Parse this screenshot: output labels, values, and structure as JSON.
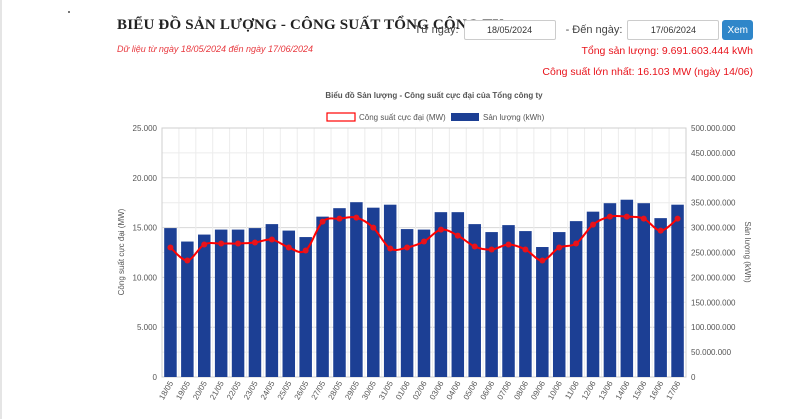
{
  "page": {
    "title": "BIỂU ĐỒ SẢN LƯỢNG - CÔNG SUẤT TỔNG CÔNG TY",
    "subtitle": "Dữ liệu từ ngày 18/05/2024 đến ngày 17/06/2024",
    "from_label": "Từ ngày:",
    "from_value": "18/05/2024",
    "to_label": "- Đến ngày:",
    "to_value": "17/06/2024",
    "view_button": "Xem",
    "total_output": "Tổng sản lượng: 9.691.603.444 kWh",
    "max_power": "Công suất lớn nhất: 16.103 MW (ngày 14/06)"
  },
  "colors": {
    "bar": "#1c3f94",
    "line": "#ff0000",
    "marker": "#e8131b",
    "accent": "#e8393f",
    "button": "#2f86c9"
  },
  "chart_data": {
    "type": "bar+line",
    "title": "Biểu đồ Sản lượng - Công suất cực đại của Tổng công ty",
    "legend": [
      "Công suất cực đại (MW)",
      "Sản lượng (kWh)"
    ],
    "ylabel_left": "Công suất cực đại (MW)",
    "ylabel_right": "Sản lượng (kWh)",
    "ylim_left": [
      0,
      25000
    ],
    "ylim_right": [
      0,
      500000000
    ],
    "yticks_left": [
      "0",
      "5.000",
      "10.000",
      "15.000",
      "20.000",
      "25.000"
    ],
    "yticks_right": [
      "0",
      "50.000.000",
      "100.000.000",
      "150.000.000",
      "200.000.000",
      "250.000.000",
      "300.000.000",
      "350.000.000",
      "400.000.000",
      "450.000.000",
      "500.000.000"
    ],
    "categories": [
      "18/05",
      "19/05",
      "20/05",
      "21/05",
      "22/05",
      "23/05",
      "24/05",
      "25/05",
      "26/05",
      "27/05",
      "28/05",
      "29/05",
      "30/05",
      "31/05",
      "01/06",
      "02/06",
      "03/06",
      "04/06",
      "05/06",
      "06/06",
      "07/06",
      "08/06",
      "09/06",
      "10/06",
      "11/06",
      "12/06",
      "13/06",
      "14/06",
      "15/06",
      "16/06",
      "17/06"
    ],
    "series": [
      {
        "name": "Sản lượng (kWh)",
        "kind": "bar",
        "values": [
          299000000,
          272000000,
          286000000,
          296000000,
          296000000,
          299000000,
          307000000,
          294000000,
          281000000,
          322000000,
          339000000,
          351000000,
          340000000,
          346000000,
          297000000,
          296000000,
          331000000,
          331000000,
          307000000,
          291000000,
          305000000,
          293000000,
          261000000,
          291000000,
          313000000,
          332000000,
          349000000,
          356000000,
          349000000,
          319000000,
          346000000
        ]
      },
      {
        "name": "Công suất cực đại (MW)",
        "kind": "line",
        "values": [
          13000,
          11700,
          13300,
          13400,
          13400,
          13500,
          13800,
          13000,
          12700,
          15600,
          15900,
          16000,
          15000,
          12900,
          13000,
          13600,
          14800,
          14200,
          13100,
          12800,
          13300,
          12800,
          11700,
          13000,
          13400,
          15300,
          16100,
          16103,
          15900,
          14700,
          15900
        ]
      }
    ]
  }
}
